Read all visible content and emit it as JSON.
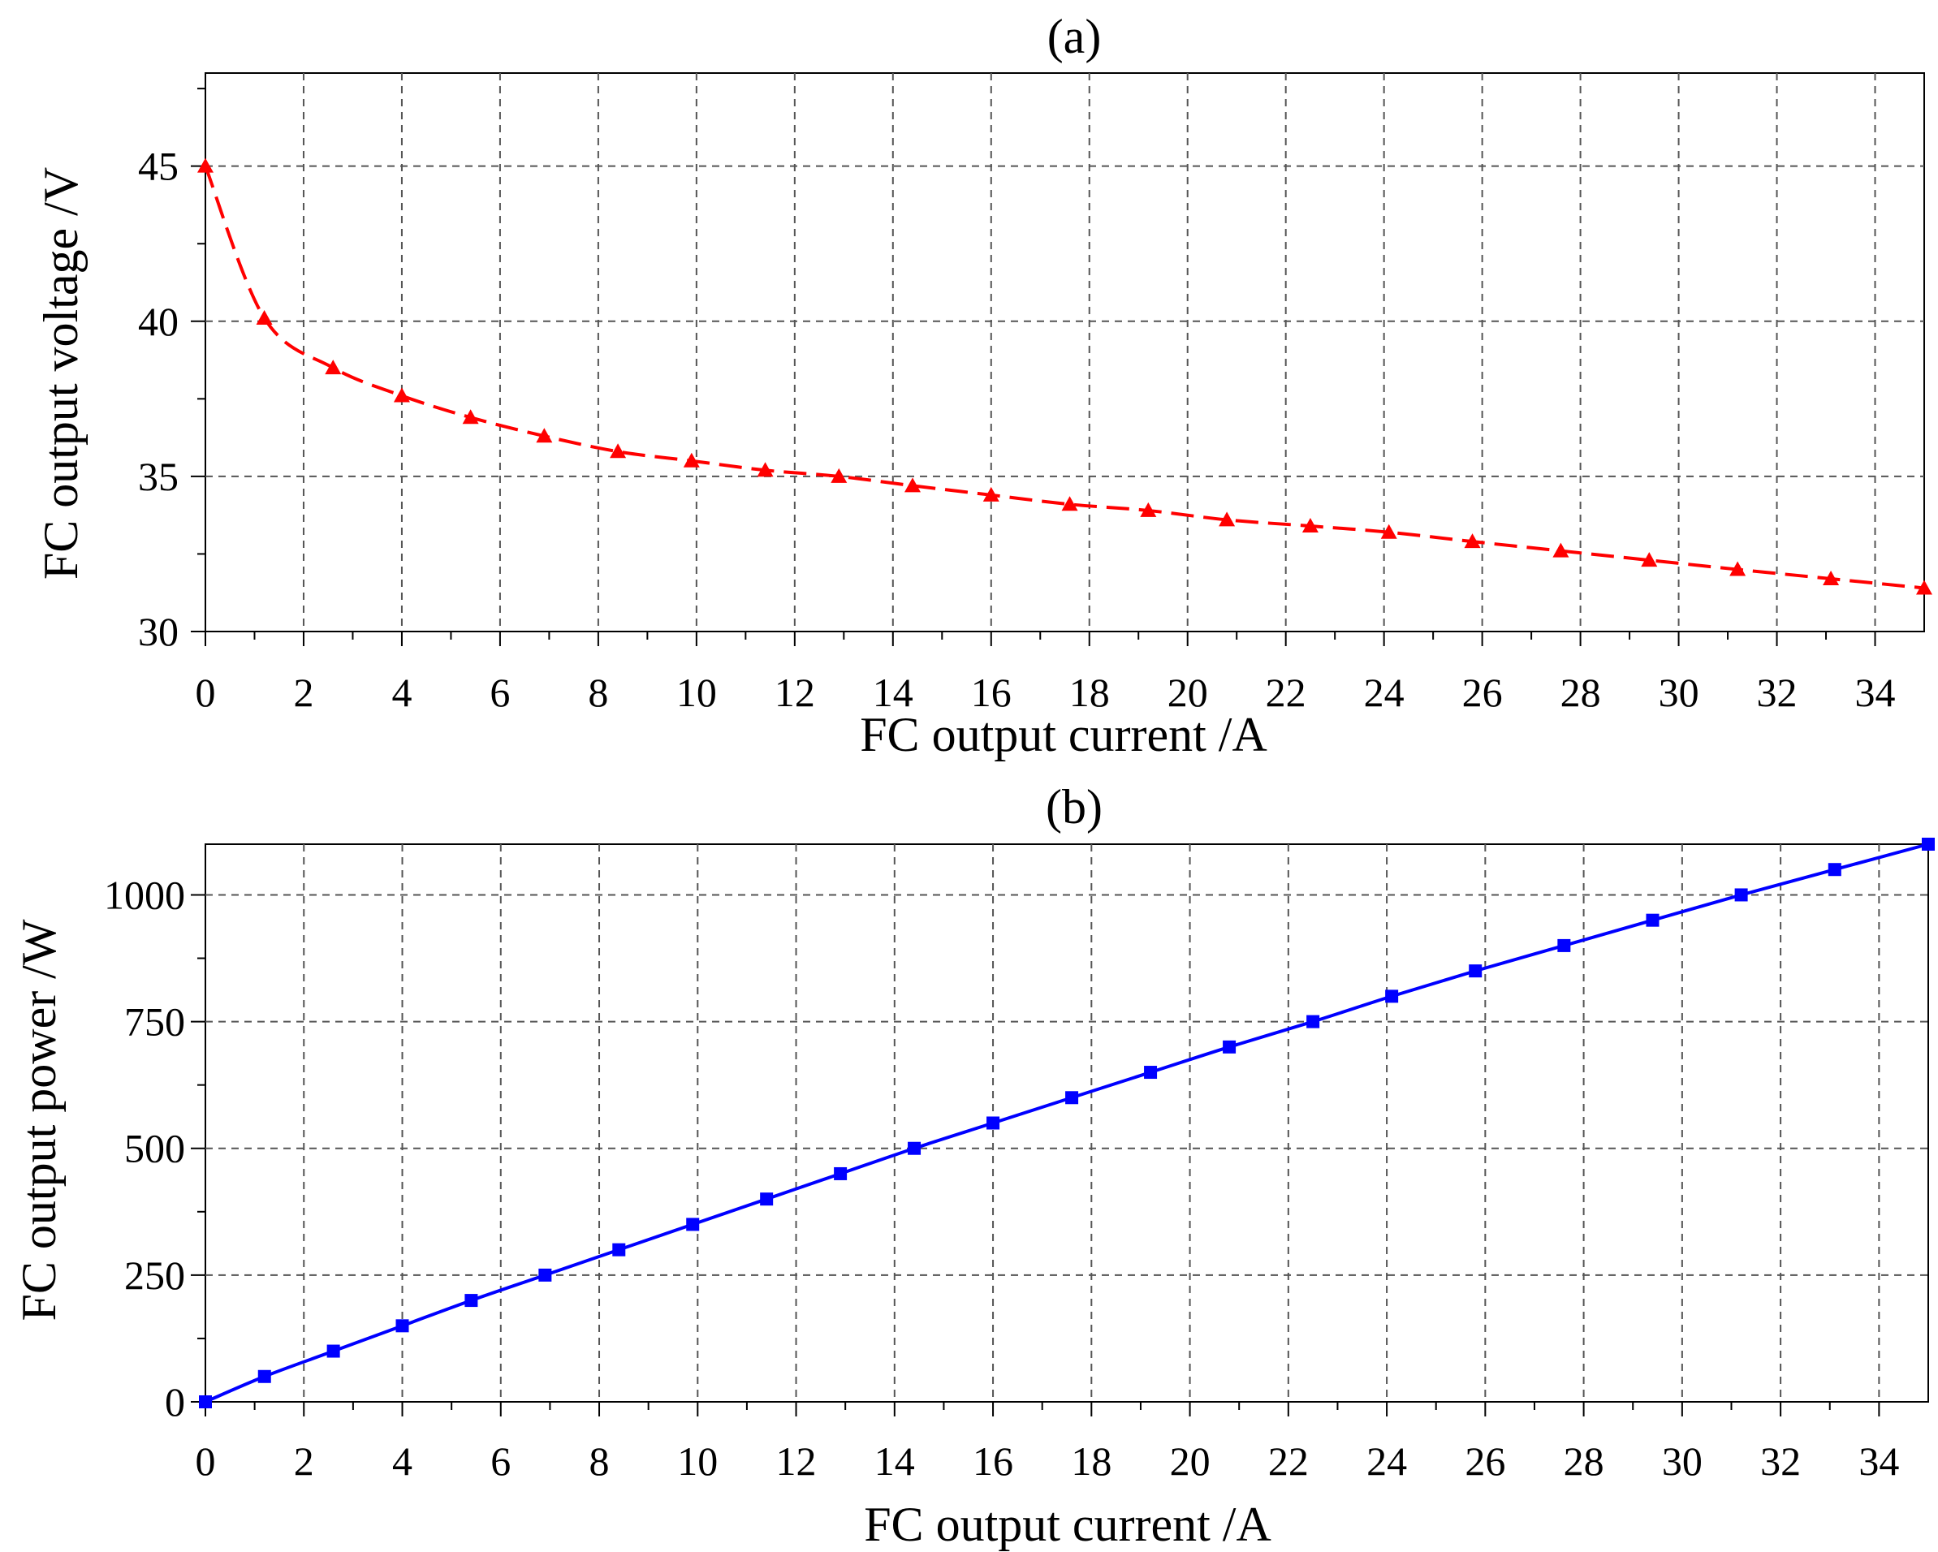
{
  "chart_data": [
    {
      "type": "line",
      "title": "(a)",
      "xlabel": "FC output current /A",
      "ylabel": "FC output voltage /V",
      "xlim": [
        0,
        35
      ],
      "ylim": [
        30,
        48
      ],
      "x_ticks": [
        "0",
        "2",
        "4",
        "6",
        "8",
        "10",
        "12",
        "14",
        "16",
        "18",
        "20",
        "22",
        "24",
        "26",
        "28",
        "30",
        "32",
        "34"
      ],
      "y_ticks": [
        "30",
        "35",
        "40",
        "45"
      ],
      "grid": true,
      "legend": "none",
      "series": [
        {
          "color": "#ff0000",
          "marker": "triangle",
          "line_style": "long-dash",
          "x": [
            0,
            1.2,
            2.6,
            4.0,
            5.4,
            6.9,
            8.4,
            9.9,
            11.4,
            12.9,
            14.4,
            16.0,
            17.6,
            19.2,
            20.8,
            22.5,
            24.1,
            25.8,
            27.6,
            29.4,
            31.2,
            33.1,
            35.0
          ],
          "y": [
            45.0,
            40.1,
            38.5,
            37.6,
            36.9,
            36.3,
            35.8,
            35.5,
            35.2,
            35.0,
            34.7,
            34.4,
            34.1,
            33.9,
            33.6,
            33.4,
            33.2,
            32.9,
            32.6,
            32.3,
            32.0,
            31.7,
            31.4
          ]
        }
      ]
    },
    {
      "type": "line",
      "title": "(b)",
      "xlabel": "FC output current /A",
      "ylabel": "FC output power /W",
      "xlim": [
        0,
        35
      ],
      "ylim": [
        0,
        1100
      ],
      "x_ticks": [
        "0",
        "2",
        "4",
        "6",
        "8",
        "10",
        "12",
        "14",
        "16",
        "18",
        "20",
        "22",
        "24",
        "26",
        "28",
        "30",
        "32",
        "34"
      ],
      "y_ticks": [
        "0",
        "250",
        "500",
        "750",
        "1000"
      ],
      "grid": true,
      "legend": "none",
      "series": [
        {
          "color": "#0000ff",
          "marker": "square",
          "line_style": "solid",
          "x": [
            0,
            1.2,
            2.6,
            4.0,
            5.4,
            6.9,
            8.4,
            9.9,
            11.4,
            12.9,
            14.4,
            16.0,
            17.6,
            19.2,
            20.8,
            22.5,
            24.1,
            25.8,
            27.6,
            29.4,
            31.2,
            33.1,
            35.0
          ],
          "y": [
            0,
            50,
            100,
            150,
            200,
            250,
            300,
            350,
            400,
            450,
            500,
            550,
            600,
            650,
            700,
            750,
            800,
            850,
            900,
            950,
            1000,
            1050,
            1100
          ]
        }
      ]
    }
  ]
}
